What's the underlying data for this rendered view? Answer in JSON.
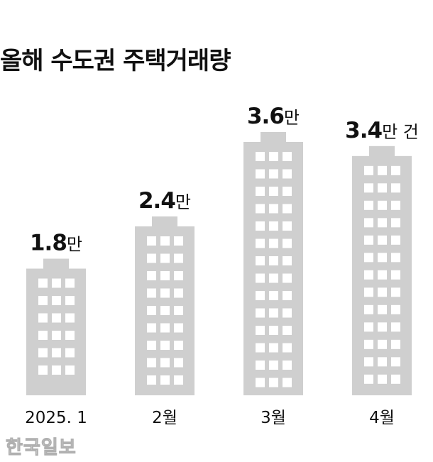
{
  "title": "올해 수도권 주택거래량",
  "watermark": "한국일보",
  "colors": {
    "building": "#cfcfcf",
    "window": "#ffffff",
    "text": "#111111"
  },
  "chart_data": {
    "type": "bar",
    "title": "올해 수도권 주택거래량",
    "categories": [
      "2025. 1",
      "2월",
      "3월",
      "4월"
    ],
    "values": [
      1.8,
      2.4,
      3.6,
      3.4
    ],
    "value_labels": [
      "1.8",
      "2.4",
      "3.6",
      "3.4"
    ],
    "unit_labels": [
      "만",
      "만",
      "만",
      "만 건"
    ],
    "ylim": [
      0,
      3.6
    ],
    "grid": false,
    "legend": "none"
  }
}
